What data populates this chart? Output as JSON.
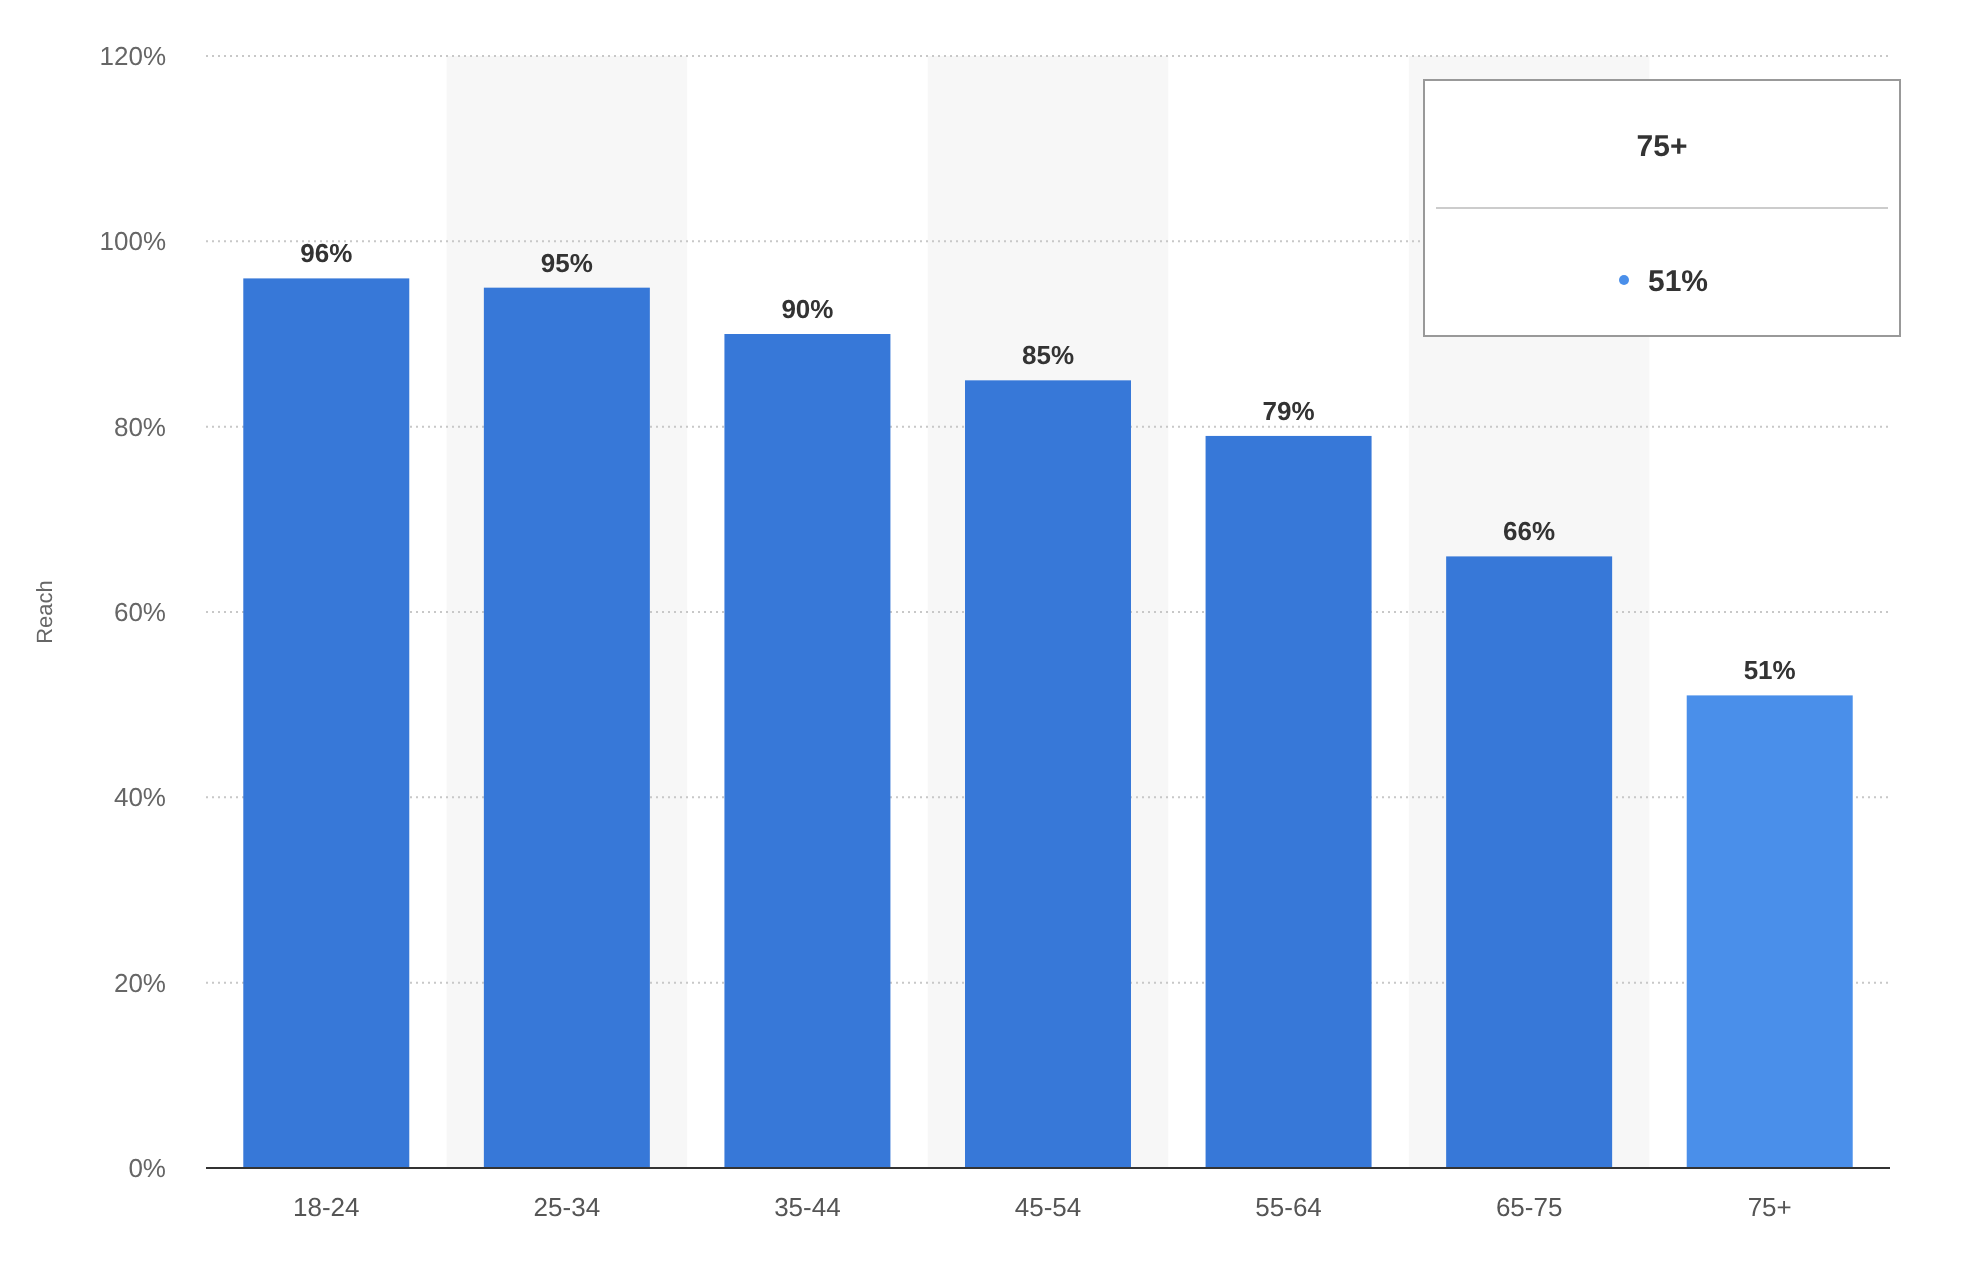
{
  "chart_data": {
    "type": "bar",
    "ylabel": "Reach",
    "categories": [
      "18-24",
      "25-34",
      "35-44",
      "45-54",
      "55-64",
      "65-75",
      "75+"
    ],
    "values": [
      96,
      95,
      90,
      85,
      79,
      66,
      51
    ],
    "colors": [
      "#3778d8",
      "#3778d8",
      "#3778d8",
      "#3778d8",
      "#3778d8",
      "#3778d8",
      "#4a8fea"
    ],
    "ylim": [
      0,
      120
    ],
    "yticks": [
      {
        "value": 0,
        "label": "0%"
      },
      {
        "value": 20,
        "label": "20%"
      },
      {
        "value": 40,
        "label": "40%"
      },
      {
        "value": 60,
        "label": "60%"
      },
      {
        "value": 80,
        "label": "80%"
      },
      {
        "value": 100,
        "label": "100%"
      },
      {
        "value": 120,
        "label": "120%"
      }
    ],
    "value_labels": [
      "96%",
      "95%",
      "90%",
      "85%",
      "79%",
      "66%",
      "51%"
    ],
    "annotations": [
      "75+",
      "51%"
    ],
    "grid": "y"
  }
}
